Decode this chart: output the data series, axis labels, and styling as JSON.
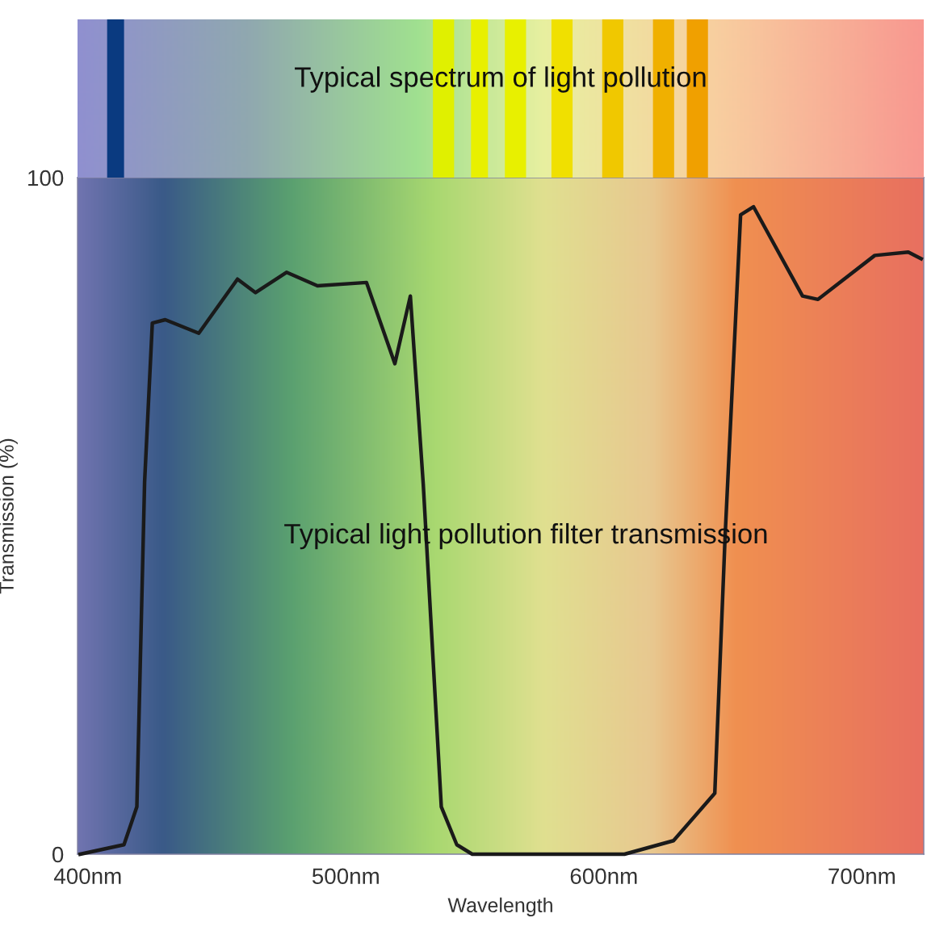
{
  "chart_data": {
    "type": "line",
    "xlabel": "Wavelength",
    "ylabel": "Transmission (%)",
    "xlim": [
      396,
      724
    ],
    "ylim": [
      0,
      100
    ],
    "xticks": [
      {
        "value": 400,
        "label": "400nm"
      },
      {
        "value": 500,
        "label": "500nm"
      },
      {
        "value": 600,
        "label": "600nm"
      },
      {
        "value": 700,
        "label": "700nm"
      }
    ],
    "yticks": [
      0,
      100
    ],
    "grid": false,
    "legend": false,
    "marker": "none",
    "line_style": "solid",
    "annotations": [
      "Typical spectrum of light pollution",
      "Typical light pollution filter transmission"
    ],
    "series": [
      {
        "color": "#1a1a1a",
        "x": [
          397,
          414,
          419,
          422,
          425,
          430,
          443,
          458,
          465,
          477,
          489,
          508,
          519,
          525,
          530,
          537,
          543,
          549,
          560,
          580,
          600,
          608,
          627,
          643,
          647,
          653,
          658,
          677,
          683,
          705,
          718,
          723
        ],
        "values": [
          0,
          1.4,
          7,
          55,
          78.5,
          79,
          77,
          85,
          83,
          86,
          84,
          84.5,
          72.5,
          82.5,
          54.7,
          7,
          1.4,
          0,
          0,
          0,
          0,
          0,
          2,
          9,
          47,
          94.5,
          95.7,
          82.5,
          82,
          88.5,
          89,
          88
        ]
      }
    ]
  }
}
